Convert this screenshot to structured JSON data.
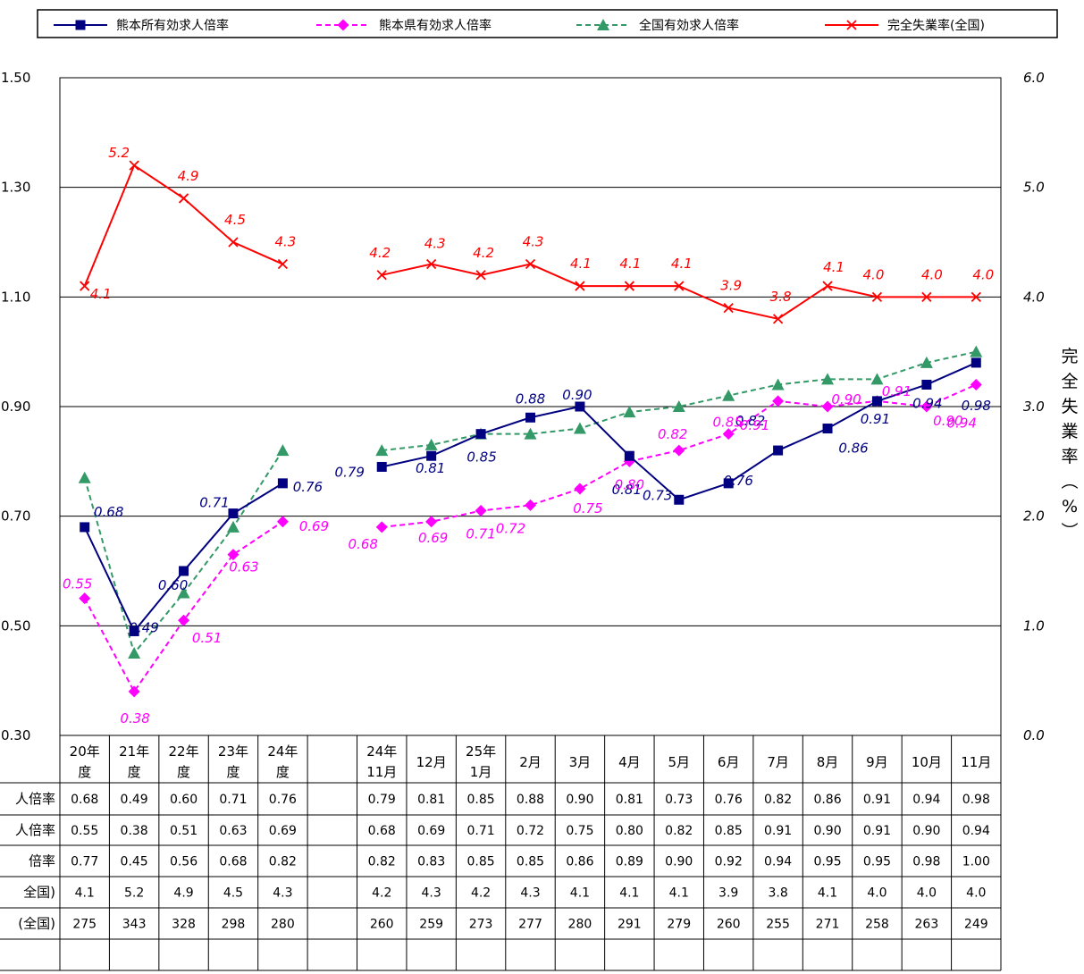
{
  "chart_data": {
    "type": "line",
    "categories": [
      [
        "20年",
        "度"
      ],
      [
        "21年",
        "度"
      ],
      [
        "22年",
        "度"
      ],
      [
        "23年",
        "度"
      ],
      [
        "24年",
        "度"
      ],
      [
        "",
        ""
      ],
      [
        "24年",
        "11月"
      ],
      [
        "12月"
      ],
      [
        "25年",
        "1月"
      ],
      [
        "2月"
      ],
      [
        "3月"
      ],
      [
        "4月"
      ],
      [
        "5月"
      ],
      [
        "6月"
      ],
      [
        "7月"
      ],
      [
        "8月"
      ],
      [
        "9月"
      ],
      [
        "10月"
      ],
      [
        "11月"
      ]
    ],
    "y_left": {
      "ylim": [
        0.3,
        1.5
      ],
      "ticks": [
        "1.50",
        "1.30",
        "1.10",
        "0.90",
        "0.70",
        "0.50",
        "0.30"
      ]
    },
    "y_right": {
      "ylim": [
        0.0,
        6.0
      ],
      "ticks": [
        "6.0",
        "5.0",
        "4.0",
        "3.0",
        "2.0",
        "1.0",
        "0.0"
      ],
      "label": [
        "完",
        "全",
        "失",
        "業",
        "率",
        "︵",
        "%",
        "︶"
      ]
    },
    "grid": true,
    "legend_position": "top",
    "series": [
      {
        "name": "熊本所有効求人倍率",
        "axis": "left",
        "color": "#000080",
        "style": "solid",
        "marker": "square",
        "values": [
          0.68,
          0.49,
          0.6,
          0.705,
          0.76,
          null,
          0.79,
          0.81,
          0.85,
          0.88,
          0.9,
          0.81,
          0.73,
          0.76,
          0.82,
          0.86,
          0.91,
          0.94,
          0.98
        ],
        "labels": [
          "0.68",
          "0.49",
          "0.60",
          "0.71",
          "0.76",
          "",
          "0.79",
          "0.81",
          "0.85",
          "0.88",
          "0.90",
          "0.81",
          "0.73",
          "0.76",
          "0.82",
          "0.86",
          "0.91",
          "0.94",
          "0.98"
        ]
      },
      {
        "name": "熊本県有効求人倍率",
        "axis": "left",
        "color": "#FF00FF",
        "style": "dashed",
        "marker": "diamond",
        "values": [
          0.55,
          0.38,
          0.51,
          0.63,
          0.69,
          null,
          0.68,
          0.69,
          0.71,
          0.72,
          0.75,
          0.8,
          0.82,
          0.85,
          0.91,
          0.9,
          0.91,
          0.9,
          0.94
        ],
        "labels": [
          "0.55",
          "0.38",
          "0.51",
          "0.63",
          "0.69",
          "",
          "0.68",
          "0.69",
          "0.71",
          "0.72",
          "0.75",
          "0.80",
          "0.82",
          "0.85",
          "0.91",
          "0.90",
          "0.91",
          "0.90",
          "0.94"
        ]
      },
      {
        "name": "全国有効求人倍率",
        "axis": "left",
        "color": "#339966",
        "style": "dashed",
        "marker": "triangle",
        "values": [
          0.77,
          0.45,
          0.56,
          0.68,
          0.82,
          null,
          0.82,
          0.83,
          0.85,
          0.85,
          0.86,
          0.89,
          0.9,
          0.92,
          0.94,
          0.95,
          0.95,
          0.98,
          1.0
        ],
        "labels": []
      },
      {
        "name": "完全失業率(全国)",
        "axis": "right",
        "color": "#FF0000",
        "style": "solid",
        "marker": "x",
        "values": [
          4.1,
          5.2,
          4.9,
          4.5,
          4.3,
          null,
          4.2,
          4.3,
          4.2,
          4.3,
          4.1,
          4.1,
          4.1,
          3.9,
          3.8,
          4.1,
          4.0,
          4.0,
          4.0
        ],
        "labels": [
          "4.1",
          "5.2",
          "4.9",
          "4.5",
          "4.3",
          "",
          "4.2",
          "4.3",
          "4.2",
          "4.3",
          "4.1",
          "4.1",
          "4.1",
          "3.9",
          "3.8",
          "4.1",
          "4.0",
          "4.0",
          "4.0"
        ]
      }
    ]
  },
  "table": {
    "row_labels": [
      "人倍率",
      "人倍率",
      "倍率",
      "全国)",
      "(全国)"
    ],
    "rows": [
      [
        "0.68",
        "0.49",
        "0.60",
        "0.71",
        "0.76",
        "",
        "0.79",
        "0.81",
        "0.85",
        "0.88",
        "0.90",
        "0.81",
        "0.73",
        "0.76",
        "0.82",
        "0.86",
        "0.91",
        "0.94",
        "0.98"
      ],
      [
        "0.55",
        "0.38",
        "0.51",
        "0.63",
        "0.69",
        "",
        "0.68",
        "0.69",
        "0.71",
        "0.72",
        "0.75",
        "0.80",
        "0.82",
        "0.85",
        "0.91",
        "0.90",
        "0.91",
        "0.90",
        "0.94"
      ],
      [
        "0.77",
        "0.45",
        "0.56",
        "0.68",
        "0.82",
        "",
        "0.82",
        "0.83",
        "0.85",
        "0.85",
        "0.86",
        "0.89",
        "0.90",
        "0.92",
        "0.94",
        "0.95",
        "0.95",
        "0.98",
        "1.00"
      ],
      [
        "4.1",
        "5.2",
        "4.9",
        "4.5",
        "4.3",
        "",
        "4.2",
        "4.3",
        "4.2",
        "4.3",
        "4.1",
        "4.1",
        "4.1",
        "3.9",
        "3.8",
        "4.1",
        "4.0",
        "4.0",
        "4.0"
      ],
      [
        "275",
        "343",
        "328",
        "298",
        "280",
        "",
        "260",
        "259",
        "273",
        "277",
        "280",
        "291",
        "279",
        "260",
        "255",
        "271",
        "258",
        "263",
        "249"
      ]
    ]
  }
}
